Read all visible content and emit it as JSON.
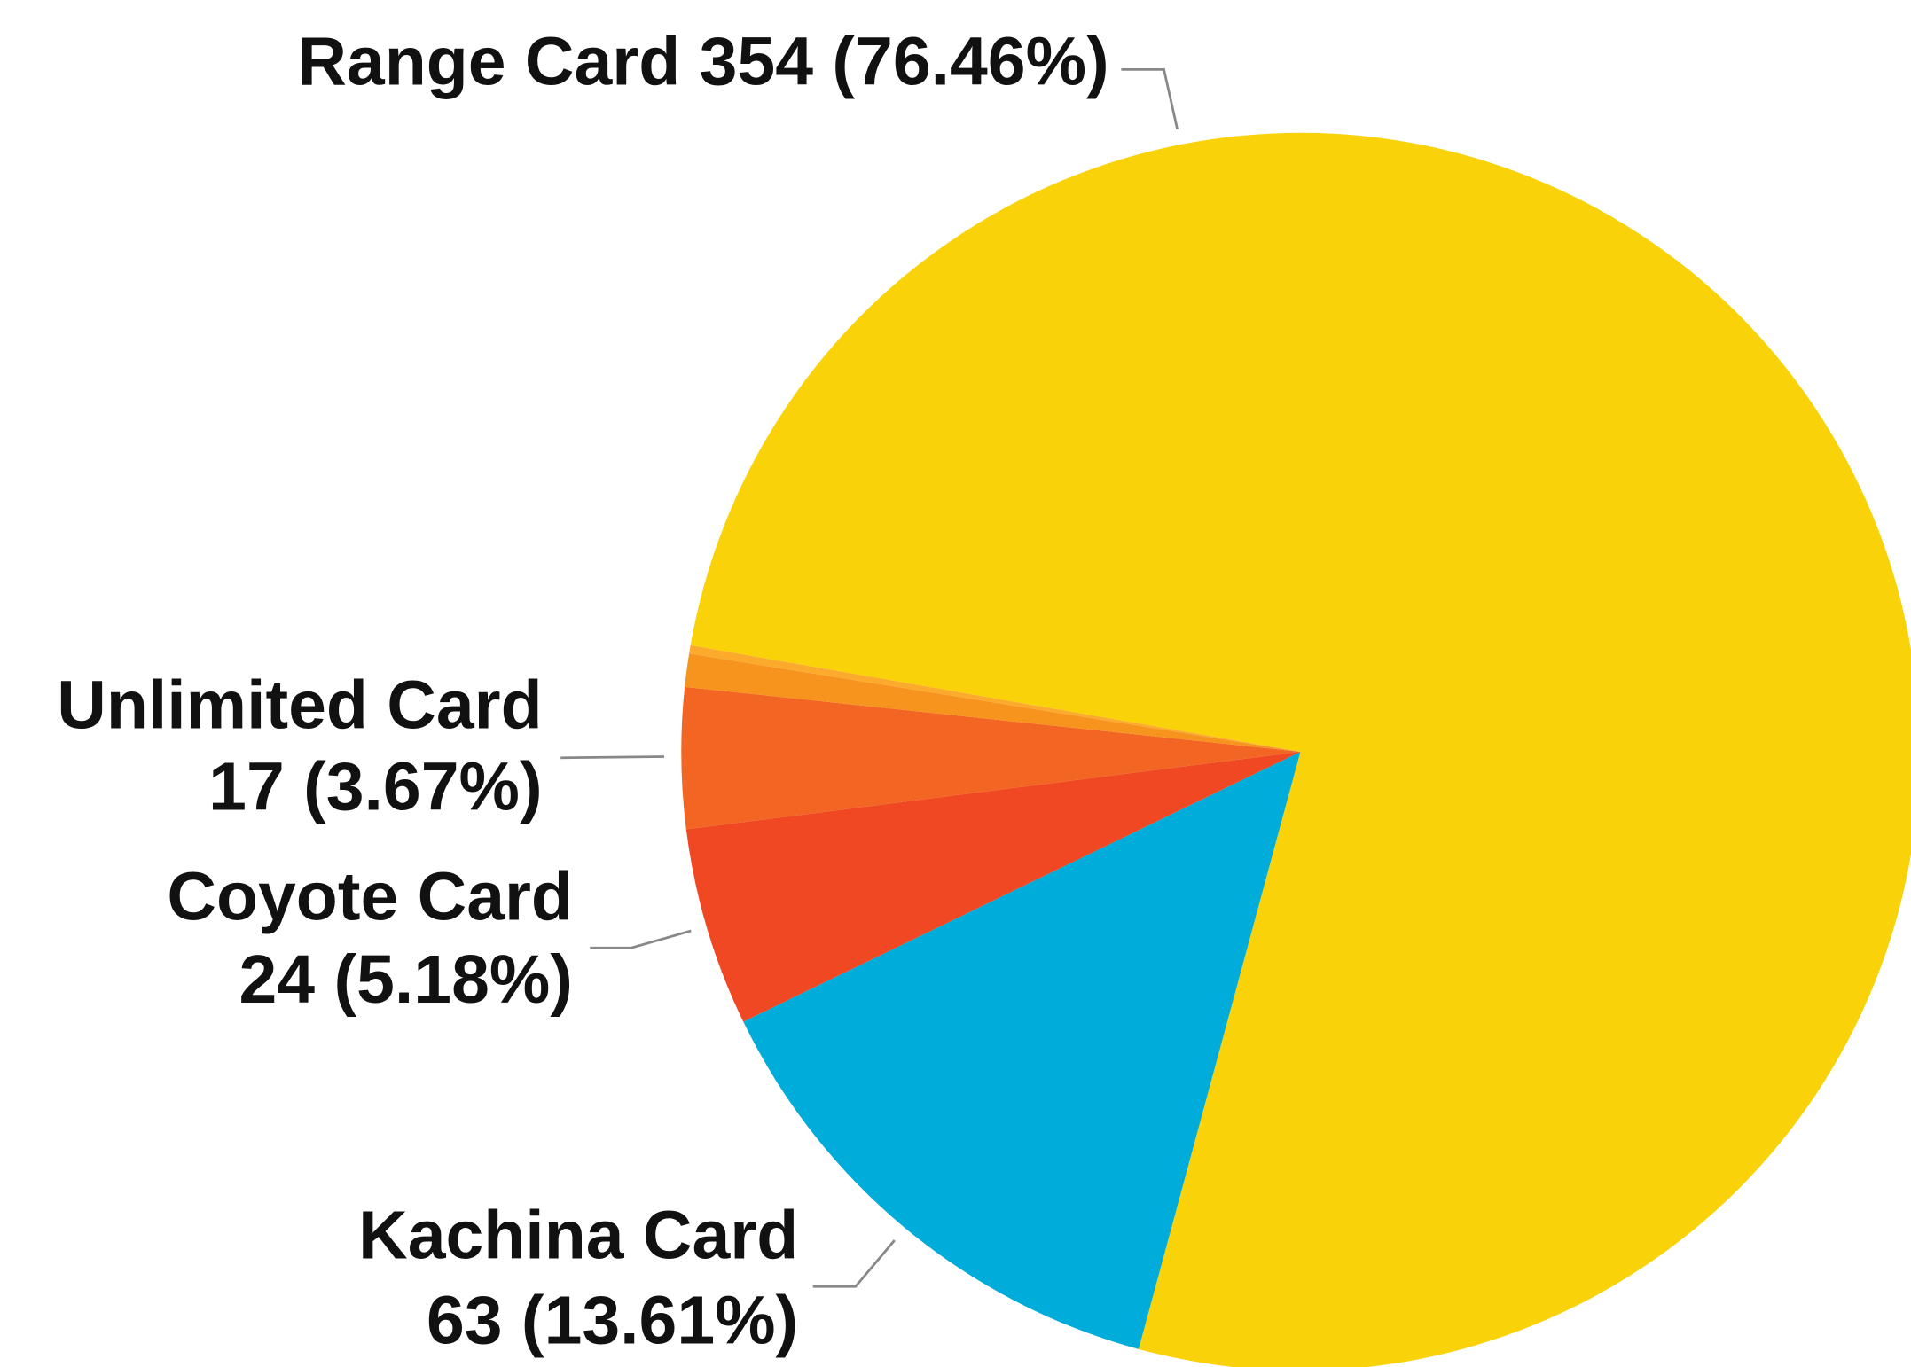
{
  "chart_data": {
    "type": "pie",
    "categories": [
      "Range Card",
      "Kachina Card",
      "Coyote Card",
      "Unlimited Card",
      null,
      null
    ],
    "values": [
      354,
      63,
      24,
      17,
      4,
      1
    ],
    "value_labels": [
      "354 (76.46%)",
      "63 (13.61%)",
      "24 (5.18%)",
      "17 (3.67%)",
      null,
      null
    ],
    "colors": [
      "#f9d20a",
      "#00acd9",
      "#ef4822",
      "#f26522",
      "#f7941d",
      "#fbaa2b"
    ]
  }
}
